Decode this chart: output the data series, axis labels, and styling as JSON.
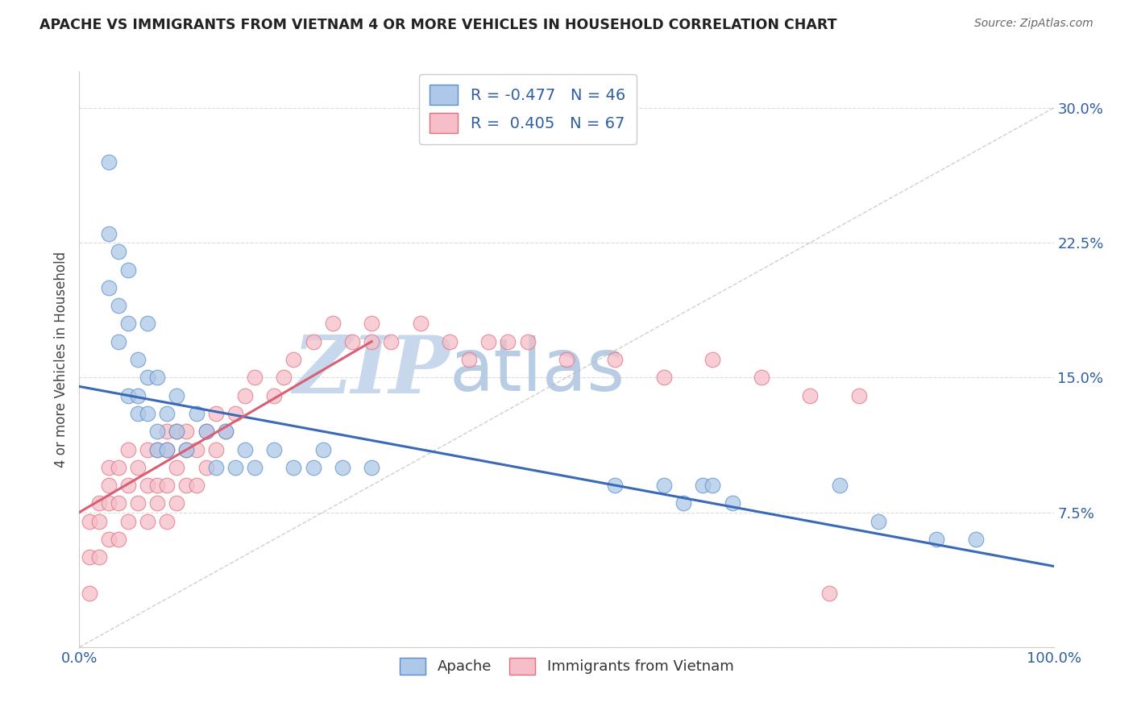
{
  "title": "APACHE VS IMMIGRANTS FROM VIETNAM 4 OR MORE VEHICLES IN HOUSEHOLD CORRELATION CHART",
  "source": "Source: ZipAtlas.com",
  "ylabel": "4 or more Vehicles in Household",
  "xlim": [
    0,
    100
  ],
  "ylim": [
    0,
    32
  ],
  "apache_R": -0.477,
  "apache_N": 46,
  "vietnam_R": 0.405,
  "vietnam_N": 67,
  "apache_color": "#adc8e8",
  "apache_edge_color": "#5b8fc9",
  "apache_line_color": "#3a6ab5",
  "vietnam_color": "#f5bec8",
  "vietnam_edge_color": "#e07080",
  "vietnam_line_color": "#d95f75",
  "legend_text_color": "#2e5fa3",
  "watermark_zip_color": "#c8d8ec",
  "watermark_atlas_color": "#b8cce4",
  "ref_line_color": "#bbbbbb",
  "grid_color": "#cccccc",
  "background_color": "#ffffff",
  "apache_x": [
    3,
    3,
    3,
    4,
    4,
    4,
    5,
    5,
    5,
    6,
    6,
    6,
    7,
    7,
    7,
    8,
    8,
    8,
    9,
    9,
    10,
    10,
    11,
    12,
    13,
    14,
    15,
    16,
    17,
    18,
    20,
    22,
    24,
    25,
    27,
    30,
    55,
    60,
    62,
    64,
    65,
    67,
    78,
    82,
    88,
    92
  ],
  "apache_y": [
    27,
    23,
    20,
    22,
    19,
    17,
    21,
    18,
    14,
    16,
    14,
    13,
    18,
    15,
    13,
    15,
    12,
    11,
    13,
    11,
    14,
    12,
    11,
    13,
    12,
    10,
    12,
    10,
    11,
    10,
    11,
    10,
    10,
    11,
    10,
    10,
    9,
    9,
    8,
    9,
    9,
    8,
    9,
    7,
    6,
    6
  ],
  "vietnam_x": [
    1,
    1,
    1,
    2,
    2,
    2,
    3,
    3,
    3,
    3,
    4,
    4,
    4,
    5,
    5,
    5,
    6,
    6,
    7,
    7,
    7,
    8,
    8,
    8,
    9,
    9,
    9,
    9,
    10,
    10,
    10,
    11,
    11,
    11,
    12,
    12,
    13,
    13,
    14,
    14,
    15,
    16,
    17,
    18,
    20,
    21,
    22,
    24,
    26,
    28,
    30,
    30,
    32,
    35,
    38,
    40,
    42,
    44,
    46,
    50,
    55,
    60,
    65,
    70,
    75,
    77,
    80
  ],
  "vietnam_y": [
    3,
    5,
    7,
    5,
    7,
    8,
    6,
    8,
    9,
    10,
    6,
    8,
    10,
    7,
    9,
    11,
    8,
    10,
    7,
    9,
    11,
    8,
    9,
    11,
    7,
    9,
    11,
    12,
    8,
    10,
    12,
    9,
    11,
    12,
    9,
    11,
    10,
    12,
    11,
    13,
    12,
    13,
    14,
    15,
    14,
    15,
    16,
    17,
    18,
    17,
    17,
    18,
    17,
    18,
    17,
    16,
    17,
    17,
    17,
    16,
    16,
    15,
    16,
    15,
    14,
    3,
    14
  ],
  "apache_line_x0": 0,
  "apache_line_x1": 100,
  "apache_line_y0": 14.5,
  "apache_line_y1": 4.5,
  "vietnam_line_x0": 0,
  "vietnam_line_x1": 30,
  "vietnam_line_y0": 7.5,
  "vietnam_line_y1": 17.0
}
